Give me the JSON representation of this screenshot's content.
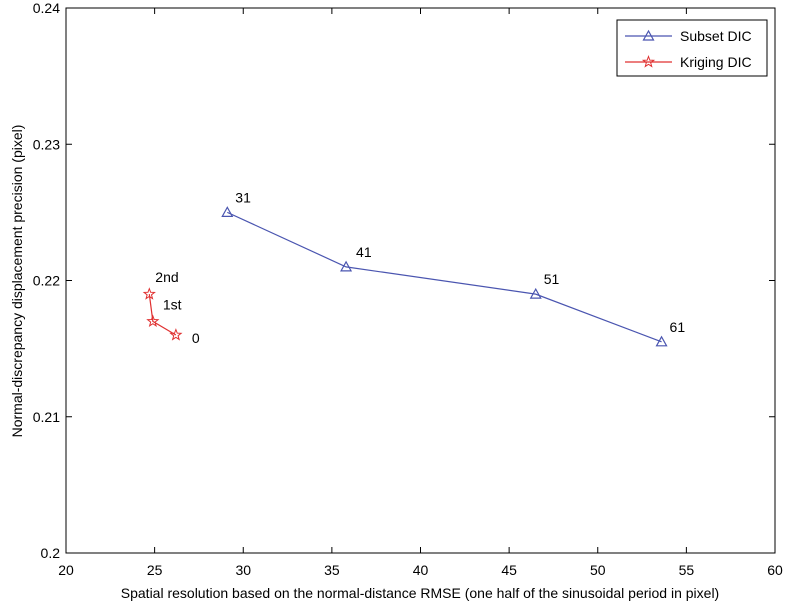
{
  "chart_data": {
    "type": "line",
    "xlabel": "Spatial resolution based on the normal-distance RMSE (one half of the sinusoidal period in pixel)",
    "ylabel": "Normal-discrepancy displacement precision (pixel)",
    "xlim": [
      20,
      60
    ],
    "ylim": [
      0.2,
      0.24
    ],
    "xticks": [
      20,
      25,
      30,
      35,
      40,
      45,
      50,
      55,
      60
    ],
    "yticks": [
      0.2,
      0.21,
      0.22,
      0.23,
      0.24
    ],
    "xtick_labels": [
      "20",
      "25",
      "30",
      "35",
      "40",
      "45",
      "50",
      "55",
      "60"
    ],
    "ytick_labels": [
      "0.2",
      "0.21",
      "0.22",
      "0.23",
      "0.24"
    ],
    "grid": false,
    "legend": "top-right",
    "series": [
      {
        "name": "Subset DIC",
        "color": "#4a55b0",
        "marker": "triangle",
        "x": [
          29.1,
          35.8,
          46.5,
          53.6
        ],
        "y": [
          0.225,
          0.221,
          0.219,
          0.2155
        ],
        "point_labels": [
          "31",
          "41",
          "51",
          "61"
        ]
      },
      {
        "name": "Kriging DIC",
        "color": "#e03030",
        "marker": "star",
        "x": [
          24.7,
          24.9,
          26.2
        ],
        "y": [
          0.219,
          0.217,
          0.216
        ],
        "point_labels": [
          "2nd",
          "1st",
          "0"
        ]
      }
    ]
  }
}
